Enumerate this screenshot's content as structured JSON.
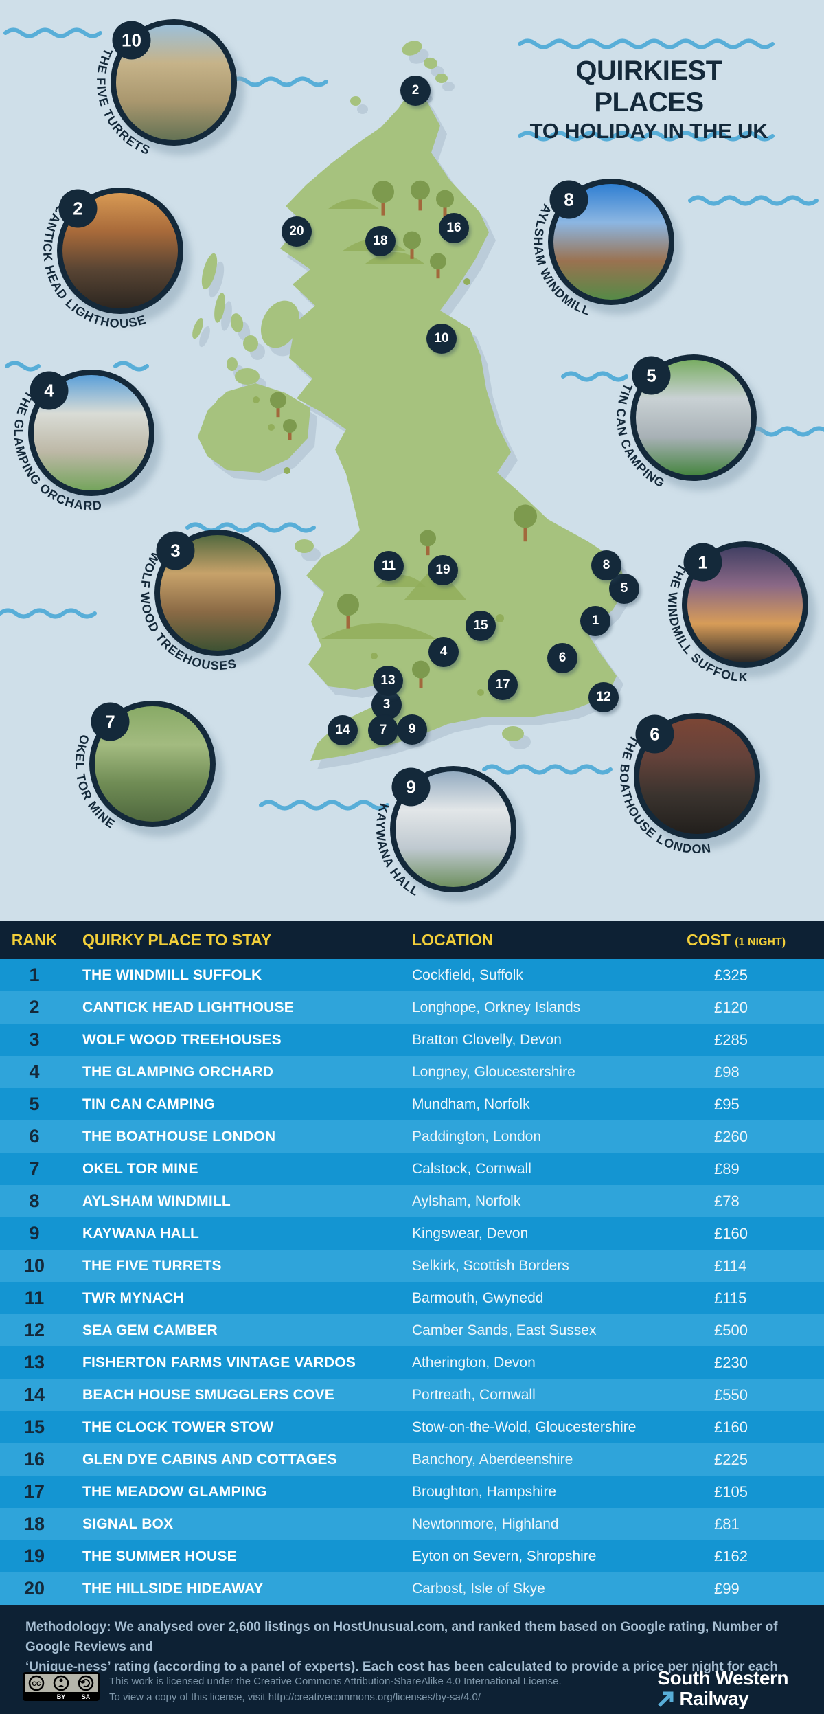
{
  "title": {
    "line1": "QUIRKIEST PLACES",
    "line2": "TO HOLIDAY IN THE UK"
  },
  "map": {
    "marker_numbers": [
      1,
      2,
      3,
      4,
      5,
      6,
      7,
      8,
      9,
      10,
      11,
      12,
      13,
      14,
      15,
      16,
      17,
      18,
      19,
      20
    ],
    "callouts": [
      {
        "number": "10",
        "label": "THE FIVE TURRETS"
      },
      {
        "number": "2",
        "label": "CANTICK HEAD LIGHTHOUSE"
      },
      {
        "number": "4",
        "label": "THE GLAMPING ORCHARD"
      },
      {
        "number": "3",
        "label": "WOLF WOOD TREEHOUSES"
      },
      {
        "number": "7",
        "label": "OKEL TOR MINE"
      },
      {
        "number": "9",
        "label": "KAYWANA HALL"
      },
      {
        "number": "8",
        "label": "AYLSHAM WINDMILL"
      },
      {
        "number": "5",
        "label": "TIN CAN CAMPING"
      },
      {
        "number": "1",
        "label": "THE WINDMILL SUFFOLK"
      },
      {
        "number": "6",
        "label": "THE BOATHOUSE LONDON"
      }
    ]
  },
  "table": {
    "columns": {
      "rank": "RANK",
      "place": "QUIRKY PLACE TO STAY",
      "location": "LOCATION",
      "cost": "COST",
      "cost_note": "(1 NIGHT)"
    },
    "rows": [
      {
        "rank": "1",
        "place": "THE WINDMILL SUFFOLK",
        "location": "Cockfield, Suffolk",
        "cost": "£325"
      },
      {
        "rank": "2",
        "place": "CANTICK HEAD LIGHTHOUSE",
        "location": "Longhope, Orkney Islands",
        "cost": "£120"
      },
      {
        "rank": "3",
        "place": "WOLF WOOD TREEHOUSES",
        "location": "Bratton Clovelly, Devon",
        "cost": "£285"
      },
      {
        "rank": "4",
        "place": "THE GLAMPING ORCHARD",
        "location": "Longney, Gloucestershire",
        "cost": "£98"
      },
      {
        "rank": "5",
        "place": "TIN CAN CAMPING",
        "location": "Mundham, Norfolk",
        "cost": "£95"
      },
      {
        "rank": "6",
        "place": "THE BOATHOUSE LONDON",
        "location": "Paddington, London",
        "cost": "£260"
      },
      {
        "rank": "7",
        "place": "OKEL TOR MINE",
        "location": "Calstock, Cornwall",
        "cost": "£89"
      },
      {
        "rank": "8",
        "place": "AYLSHAM WINDMILL",
        "location": "Aylsham, Norfolk",
        "cost": "£78"
      },
      {
        "rank": "9",
        "place": "KAYWANA HALL",
        "location": "Kingswear, Devon",
        "cost": "£160"
      },
      {
        "rank": "10",
        "place": "THE FIVE TURRETS",
        "location": "Selkirk, Scottish Borders",
        "cost": "£114"
      },
      {
        "rank": "11",
        "place": "TWR MYNACH",
        "location": "Barmouth, Gwynedd",
        "cost": "£115"
      },
      {
        "rank": "12",
        "place": "SEA GEM CAMBER",
        "location": "Camber Sands, East Sussex",
        "cost": "£500"
      },
      {
        "rank": "13",
        "place": "FISHERTON FARMS VINTAGE VARDOS",
        "location": "Atherington, Devon",
        "cost": "£230"
      },
      {
        "rank": "14",
        "place": "BEACH HOUSE SMUGGLERS COVE",
        "location": "Portreath, Cornwall",
        "cost": "£550"
      },
      {
        "rank": "15",
        "place": "THE CLOCK TOWER STOW",
        "location": "Stow-on-the-Wold, Gloucestershire",
        "cost": "£160"
      },
      {
        "rank": "16",
        "place": "GLEN DYE CABINS AND COTTAGES",
        "location": "Banchory, Aberdeenshire",
        "cost": "£225"
      },
      {
        "rank": "17",
        "place": "THE MEADOW GLAMPING",
        "location": "Broughton, Hampshire",
        "cost": "£105"
      },
      {
        "rank": "18",
        "place": "SIGNAL BOX",
        "location": "Newtonmore, Highland",
        "cost": "£81"
      },
      {
        "rank": "19",
        "place": "THE SUMMER HOUSE",
        "location": "Eyton on Severn, Shropshire",
        "cost": "£162"
      },
      {
        "rank": "20",
        "place": "THE HILLSIDE HIDEAWAY",
        "location": "Carbost, Isle of Skye",
        "cost": "£99"
      }
    ]
  },
  "footer": {
    "methodology_line1": "Methodology: We analysed over 2,600 listings on HostUnusual.com, and ranked them based on Google rating, Number of Google Reviews and",
    "methodology_line2": "‘Unique-ness’ rating (according to a panel of experts). Each cost has been calculated to provide a price per night for each stay.",
    "license_line1": "This work is licensed under the Creative Commons Attribution-ShareAlike 4.0 International License.",
    "license_line2": "To view a copy of this license, visit http://creativecommons.org/licenses/by-sa/4.0/",
    "cc": {
      "label1": "CC",
      "label2": "BY",
      "label3": "SA"
    },
    "logo": {
      "line1": "South Western",
      "line2": "Railway"
    }
  },
  "colors": {
    "sea": "#cfdfe9",
    "land": "#a6c27e",
    "land_shadow": "#b7c9d6",
    "hill": "#92ae5b",
    "tree": "#7d9a4e",
    "trunk": "#a2683c",
    "navy": "#14293a",
    "header_bg": "#0d2134",
    "row_odd": "#1495d2",
    "row_even": "#2fa4da",
    "yellow": "#f2cf3a",
    "wave": "#58aed8",
    "meta_text": "#a6bed2",
    "license_text": "#7e96a9"
  }
}
